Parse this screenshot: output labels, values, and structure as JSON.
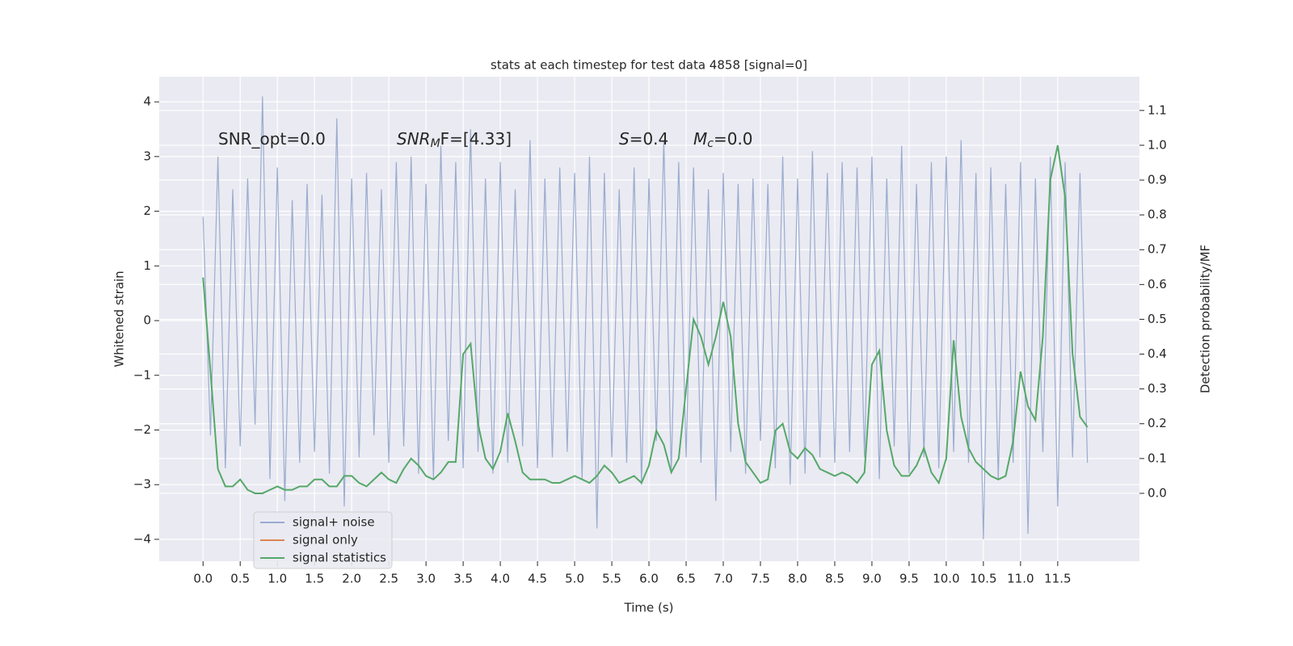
{
  "chart_data": {
    "type": "line",
    "title": "stats at each timestep for test data 4858 [signal=0]",
    "xlabel": "Time (s)",
    "ylabel": "Whitened strain",
    "y2label": "Detection probability/MF",
    "annotations": [
      {
        "parts": [
          {
            "text": "SNR_opt=0.0"
          }
        ]
      },
      {
        "parts": [
          {
            "text": "SNR",
            "style": "italic"
          },
          {
            "text": "M",
            "style": "sub"
          },
          {
            "text": "F=[4.33]"
          }
        ]
      },
      {
        "parts": [
          {
            "text": "S",
            "style": "italic"
          },
          {
            "text": "=0.4"
          }
        ]
      },
      {
        "parts": [
          {
            "text": "M",
            "style": "italic"
          },
          {
            "text": "c",
            "style": "sub"
          },
          {
            "text": "=0.0"
          }
        ]
      }
    ],
    "x": [
      0.0,
      0.1,
      0.2,
      0.3,
      0.4,
      0.5,
      0.6,
      0.7,
      0.8,
      0.9,
      1.0,
      1.1,
      1.2,
      1.3,
      1.4,
      1.5,
      1.6,
      1.7,
      1.8,
      1.9,
      2.0,
      2.1,
      2.2,
      2.3,
      2.4,
      2.5,
      2.6,
      2.7,
      2.8,
      2.9,
      3.0,
      3.1,
      3.2,
      3.3,
      3.4,
      3.5,
      3.6,
      3.7,
      3.8,
      3.9,
      4.0,
      4.1,
      4.2,
      4.3,
      4.4,
      4.5,
      4.6,
      4.7,
      4.8,
      4.9,
      5.0,
      5.1,
      5.2,
      5.3,
      5.4,
      5.5,
      5.6,
      5.7,
      5.8,
      5.9,
      6.0,
      6.1,
      6.2,
      6.3,
      6.4,
      6.5,
      6.6,
      6.7,
      6.8,
      6.9,
      7.0,
      7.1,
      7.2,
      7.3,
      7.4,
      7.5,
      7.6,
      7.7,
      7.8,
      7.9,
      8.0,
      8.1,
      8.2,
      8.3,
      8.4,
      8.5,
      8.6,
      8.7,
      8.8,
      8.9,
      9.0,
      9.1,
      9.2,
      9.3,
      9.4,
      9.5,
      9.6,
      9.7,
      9.8,
      9.9,
      10.0,
      10.1,
      10.2,
      10.3,
      10.4,
      10.5,
      10.6,
      10.7,
      10.8,
      10.9,
      11.0,
      11.1,
      11.2,
      11.3,
      11.4,
      11.5,
      11.6,
      11.7,
      11.8,
      11.9
    ],
    "series": [
      {
        "name": "signal+ noise",
        "color": "#9aaccf",
        "values": [
          1.9,
          -2.1,
          3.0,
          -2.7,
          2.4,
          -2.3,
          2.6,
          -1.9,
          4.1,
          -2.9,
          2.8,
          -3.3,
          2.2,
          -2.6,
          2.5,
          -2.4,
          2.3,
          -2.8,
          3.7,
          -3.4,
          2.6,
          -2.5,
          2.7,
          -2.1,
          2.4,
          -2.6,
          2.9,
          -2.3,
          3.0,
          -2.8,
          2.5,
          -2.9,
          3.2,
          -2.2,
          2.9,
          -2.7,
          3.5,
          -2.4,
          2.6,
          -2.8,
          2.9,
          -2.6,
          2.4,
          -2.3,
          3.3,
          -2.7,
          2.6,
          -2.5,
          2.8,
          -2.4,
          2.7,
          -2.9,
          3.0,
          -3.8,
          2.7,
          -2.5,
          2.4,
          -2.6,
          2.8,
          -3.0,
          2.6,
          -2.2,
          3.3,
          -2.8,
          2.9,
          -2.5,
          2.8,
          -2.6,
          2.4,
          -3.3,
          2.7,
          -2.4,
          2.5,
          -2.8,
          2.6,
          -2.2,
          2.5,
          -2.7,
          3.0,
          -3.0,
          2.6,
          -2.8,
          3.1,
          -2.5,
          2.7,
          -2.6,
          2.9,
          -2.4,
          2.8,
          -2.5,
          3.0,
          -2.9,
          2.6,
          -2.3,
          3.2,
          -2.8,
          2.5,
          -2.5,
          2.9,
          -2.7,
          3.0,
          -2.4,
          3.3,
          -2.6,
          2.7,
          -4.0,
          2.8,
          -2.9,
          2.5,
          -2.6,
          2.9,
          -3.9,
          2.6,
          -2.4,
          3.0,
          -3.4,
          2.9,
          -2.5,
          2.7,
          -2.6
        ]
      },
      {
        "name": "signal only",
        "color": "#dd8452"
      },
      {
        "name": "signal statistics",
        "color": "#55a868",
        "axis": "y2",
        "values": [
          0.62,
          0.35,
          0.07,
          0.02,
          0.02,
          0.04,
          0.01,
          0.0,
          0.0,
          0.01,
          0.02,
          0.01,
          0.01,
          0.02,
          0.02,
          0.04,
          0.04,
          0.02,
          0.02,
          0.05,
          0.05,
          0.03,
          0.02,
          0.04,
          0.06,
          0.04,
          0.03,
          0.07,
          0.1,
          0.08,
          0.05,
          0.04,
          0.06,
          0.09,
          0.09,
          0.4,
          0.43,
          0.2,
          0.1,
          0.07,
          0.12,
          0.23,
          0.15,
          0.06,
          0.04,
          0.04,
          0.04,
          0.03,
          0.03,
          0.04,
          0.05,
          0.04,
          0.03,
          0.05,
          0.08,
          0.06,
          0.03,
          0.04,
          0.05,
          0.03,
          0.08,
          0.18,
          0.14,
          0.06,
          0.1,
          0.3,
          0.5,
          0.45,
          0.37,
          0.45,
          0.55,
          0.45,
          0.2,
          0.09,
          0.06,
          0.03,
          0.04,
          0.18,
          0.2,
          0.12,
          0.1,
          0.13,
          0.11,
          0.07,
          0.06,
          0.05,
          0.06,
          0.05,
          0.03,
          0.06,
          0.37,
          0.41,
          0.18,
          0.08,
          0.05,
          0.05,
          0.08,
          0.13,
          0.06,
          0.03,
          0.1,
          0.44,
          0.22,
          0.13,
          0.09,
          0.07,
          0.05,
          0.04,
          0.05,
          0.15,
          0.35,
          0.25,
          0.21,
          0.45,
          0.9,
          1.0,
          0.85,
          0.4,
          0.22,
          0.19
        ]
      }
    ],
    "xlim": [
      -0.59,
      12.6
    ],
    "ylim": [
      -4.4,
      4.46
    ],
    "y2lim": [
      -0.195,
      1.197
    ],
    "xticks": [
      {
        "value": 0,
        "label": "0.0"
      },
      0.5,
      {
        "value": 1,
        "label": "1.0"
      },
      1.5,
      {
        "value": 2,
        "label": "2.0"
      },
      2.5,
      {
        "value": 3,
        "label": "3.0"
      },
      3.5,
      {
        "value": 4,
        "label": "4.0"
      },
      4.5,
      {
        "value": 5,
        "label": "5.0"
      },
      5.5,
      {
        "value": 6,
        "label": "6.0"
      },
      6.5,
      {
        "value": 7,
        "label": "7.0"
      },
      7.5,
      {
        "value": 8,
        "label": "8.0"
      },
      8.5,
      {
        "value": 9,
        "label": "9.0"
      },
      9.5,
      {
        "value": 10,
        "label": "10.0"
      },
      10.5,
      {
        "value": 11,
        "label": "11.0"
      },
      11.5
    ],
    "yticks": [
      {
        "value": -4,
        "label": "−4"
      },
      {
        "value": -3,
        "label": "−3"
      },
      {
        "value": -2,
        "label": "−2"
      },
      {
        "value": -1,
        "label": "−1"
      },
      0,
      1,
      2,
      3,
      4
    ],
    "y2ticks": [
      {
        "value": 0,
        "label": "0.0"
      },
      0.1,
      0.2,
      0.3,
      0.4,
      0.5,
      0.6,
      0.7,
      0.8,
      0.9,
      {
        "value": 1,
        "label": "1.0"
      },
      1.1
    ],
    "grid": true,
    "legend": "lower left"
  }
}
